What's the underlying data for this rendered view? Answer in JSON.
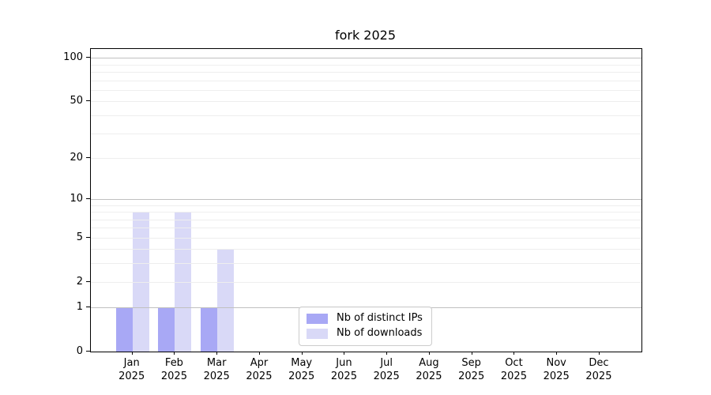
{
  "chart_data": {
    "type": "bar",
    "title": "fork 2025",
    "x_axis": {
      "months": [
        "Jan",
        "Feb",
        "Mar",
        "Apr",
        "May",
        "Jun",
        "Jul",
        "Aug",
        "Sep",
        "Oct",
        "Nov",
        "Dec"
      ],
      "year": "2025"
    },
    "series": [
      {
        "name": "Nb of distinct IPs",
        "color": "#a8a8f5",
        "values": [
          1,
          1,
          1,
          0,
          0,
          0,
          0,
          0,
          0,
          0,
          0,
          0
        ]
      },
      {
        "name": "Nb of downloads",
        "color": "#d9d9f7",
        "values": [
          8,
          8,
          4,
          0,
          0,
          0,
          0,
          0,
          0,
          0,
          0,
          0
        ]
      }
    ],
    "y_axis": {
      "scale": "log(1+x)",
      "ticks": [
        0,
        1,
        2,
        5,
        10,
        20,
        50,
        100
      ],
      "major_gridlines": [
        1,
        10,
        100
      ],
      "minor_gridlines": [
        2,
        3,
        4,
        5,
        6,
        7,
        8,
        9,
        20,
        30,
        40,
        50,
        60,
        70,
        80,
        90
      ],
      "range": [
        0,
        100
      ]
    },
    "legend_position": "bottom-center",
    "grid": true
  },
  "colors": {
    "major_grid": "#c0c0c0",
    "minor_grid": "#eeeeee",
    "spine": "#000000",
    "background": "#ffffff",
    "legend_border": "#cccccc"
  }
}
